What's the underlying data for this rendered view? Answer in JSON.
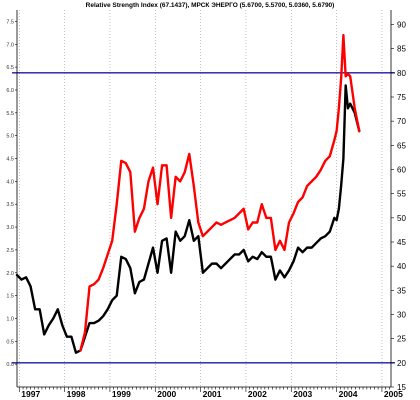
{
  "chart_data": {
    "type": "line",
    "title": "Relative Strength Index (67.1437), МРСК ЭНЕРГО (5.6700, 5.5700, 5.0360, 5.6790)",
    "left_axis": {
      "ticks": [
        "0.0",
        "0.5",
        "1.0",
        "1.5",
        "2.0",
        "2.5",
        "3.0",
        "3.5",
        "4.0",
        "4.5",
        "5.0",
        "5.5",
        "6.0",
        "6.5",
        "7.0",
        "7.5"
      ],
      "range": [
        -0.5,
        7.75
      ]
    },
    "right_axis": {
      "ticks": [
        "15",
        "20",
        "25",
        "30",
        "35",
        "40",
        "45",
        "50",
        "55",
        "60",
        "65",
        "70",
        "75",
        "80",
        "85",
        "90"
      ],
      "range": [
        15,
        93
      ]
    },
    "x_axis": {
      "ticks": [
        "1997",
        "1998",
        "1999",
        "2000",
        "2001",
        "2002",
        "2003",
        "2004",
        "2005"
      ],
      "range": [
        1996.95,
        2005.2
      ]
    },
    "reference_lines": [
      {
        "axis": "right",
        "value": 80,
        "color": "#1a1aa8"
      },
      {
        "axis": "right",
        "value": 20,
        "color": "#1a1aa8"
      }
    ],
    "series": [
      {
        "color": "#000000",
        "axis": "left",
        "x": [
          1996.95,
          1997.05,
          1997.15,
          1997.25,
          1997.35,
          1997.45,
          1997.55,
          1997.65,
          1997.75,
          1997.85,
          1997.95,
          1998.05,
          1998.15,
          1998.25,
          1998.35,
          1998.45,
          1998.55,
          1998.65,
          1998.75,
          1998.85,
          1998.95,
          1999.05,
          1999.15,
          1999.25,
          1999.35,
          1999.45,
          1999.55,
          1999.65,
          1999.75,
          1999.85,
          1999.95,
          2000.05,
          2000.15,
          2000.25,
          2000.35,
          2000.45,
          2000.55,
          2000.65,
          2000.75,
          2000.85,
          2000.95,
          2001.05,
          2001.15,
          2001.25,
          2001.35,
          2001.45,
          2001.55,
          2001.65,
          2001.75,
          2001.85,
          2001.95,
          2002.05,
          2002.15,
          2002.25,
          2002.35,
          2002.45,
          2002.55,
          2002.65,
          2002.75,
          2002.85,
          2002.95,
          2003.05,
          2003.15,
          2003.25,
          2003.35,
          2003.45,
          2003.55,
          2003.65,
          2003.75,
          2003.85,
          2003.95,
          2004.0,
          2004.05,
          2004.1,
          2004.15,
          2004.2,
          2004.25,
          2004.3,
          2004.4,
          2004.5
        ],
        "values": [
          1.95,
          1.85,
          1.9,
          1.7,
          1.2,
          1.2,
          0.65,
          0.85,
          1.0,
          1.2,
          0.85,
          0.6,
          0.6,
          0.25,
          0.3,
          0.6,
          0.9,
          0.9,
          0.95,
          1.05,
          1.2,
          1.4,
          1.5,
          2.35,
          2.3,
          2.1,
          1.55,
          1.8,
          1.85,
          2.2,
          2.55,
          2.0,
          2.7,
          2.75,
          2.0,
          2.9,
          2.7,
          2.8,
          3.15,
          2.7,
          2.8,
          2.0,
          2.1,
          2.2,
          2.2,
          2.1,
          2.2,
          2.3,
          2.4,
          2.4,
          2.5,
          2.25,
          2.35,
          2.3,
          2.45,
          2.35,
          2.35,
          1.85,
          2.05,
          1.9,
          2.05,
          2.25,
          2.55,
          2.45,
          2.55,
          2.55,
          2.65,
          2.75,
          2.8,
          2.9,
          3.2,
          3.15,
          3.4,
          3.9,
          4.5,
          6.1,
          5.6,
          5.7,
          5.5,
          5.1
        ]
      },
      {
        "color": "#ff0000",
        "axis": "left",
        "x": [
          1998.35,
          1998.45,
          1998.55,
          1998.65,
          1998.75,
          1998.85,
          1998.95,
          1999.05,
          1999.15,
          1999.25,
          1999.35,
          1999.45,
          1999.55,
          1999.65,
          1999.75,
          1999.85,
          1999.95,
          2000.05,
          2000.15,
          2000.25,
          2000.35,
          2000.45,
          2000.55,
          2000.65,
          2000.75,
          2000.85,
          2000.95,
          2001.05,
          2001.15,
          2001.25,
          2001.35,
          2001.45,
          2001.55,
          2001.65,
          2001.75,
          2001.85,
          2001.95,
          2002.05,
          2002.15,
          2002.25,
          2002.35,
          2002.45,
          2002.55,
          2002.65,
          2002.75,
          2002.85,
          2002.95,
          2003.05,
          2003.15,
          2003.25,
          2003.35,
          2003.45,
          2003.55,
          2003.65,
          2003.75,
          2003.85,
          2003.95,
          2004.0,
          2004.05,
          2004.1,
          2004.15,
          2004.2,
          2004.25,
          2004.3,
          2004.4,
          2004.5
        ],
        "values": [
          0.3,
          0.7,
          1.7,
          1.75,
          1.85,
          2.1,
          2.4,
          2.7,
          3.5,
          4.45,
          4.4,
          4.2,
          2.9,
          3.2,
          3.4,
          4.0,
          4.3,
          3.5,
          4.35,
          4.35,
          3.2,
          4.1,
          4.0,
          4.2,
          4.6,
          3.9,
          3.1,
          2.8,
          2.9,
          3.0,
          3.1,
          3.05,
          3.1,
          3.15,
          3.2,
          3.3,
          3.4,
          2.95,
          3.1,
          3.1,
          3.5,
          3.2,
          3.2,
          2.5,
          2.7,
          2.5,
          3.1,
          3.3,
          3.55,
          3.65,
          3.9,
          4.0,
          4.1,
          4.25,
          4.45,
          4.55,
          4.9,
          5.1,
          5.6,
          6.25,
          7.2,
          6.3,
          6.35,
          6.3,
          5.6,
          5.1
        ]
      }
    ]
  }
}
